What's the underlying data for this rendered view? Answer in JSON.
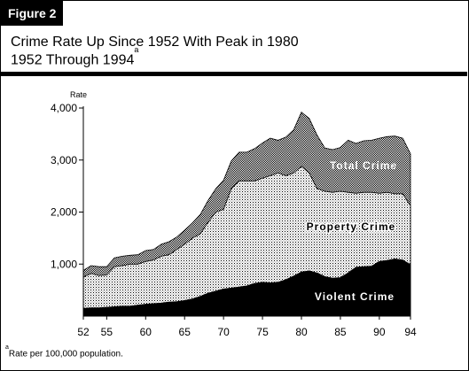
{
  "header": {
    "figure_label": "Figure 2",
    "title_line1": "Crime Rate Up Since 1952 With Peak in 1980",
    "title_line2": "1952 Through 1994",
    "title_footnote_marker": "a"
  },
  "footnote": {
    "marker": "a",
    "text": "Rate per 100,000 population."
  },
  "chart_data": {
    "type": "area",
    "stacked": true,
    "ylabel": "Rate",
    "xlabel": "",
    "ylim": [
      0,
      4000
    ],
    "xlim": [
      1952,
      1994
    ],
    "yticks": [
      1000,
      2000,
      3000,
      4000
    ],
    "ytick_labels": [
      "1,000",
      "2,000",
      "3,000",
      "4,000"
    ],
    "xticks": [
      1952,
      1955,
      1960,
      1965,
      1970,
      1975,
      1980,
      1985,
      1990,
      1994
    ],
    "xtick_labels": [
      "52",
      "55",
      "60",
      "65",
      "70",
      "75",
      "80",
      "85",
      "90",
      "94"
    ],
    "grid": false,
    "x": [
      1952,
      1953,
      1954,
      1955,
      1956,
      1957,
      1958,
      1959,
      1960,
      1961,
      1962,
      1963,
      1964,
      1965,
      1966,
      1967,
      1968,
      1969,
      1970,
      1971,
      1972,
      1973,
      1974,
      1975,
      1976,
      1977,
      1978,
      1979,
      1980,
      1981,
      1982,
      1983,
      1984,
      1985,
      1986,
      1987,
      1988,
      1989,
      1990,
      1991,
      1992,
      1993,
      1994
    ],
    "series": [
      {
        "name": "Violent Crime",
        "color": "#000000",
        "values": [
          150,
          160,
          160,
          170,
          180,
          190,
          190,
          210,
          230,
          240,
          250,
          270,
          280,
          300,
          330,
          380,
          440,
          480,
          520,
          540,
          560,
          580,
          630,
          650,
          640,
          650,
          700,
          770,
          850,
          870,
          830,
          760,
          730,
          740,
          830,
          940,
          950,
          960,
          1050,
          1070,
          1100,
          1080,
          990
        ]
      },
      {
        "name": "Property Crime",
        "color": "#cfcfcf",
        "values": [
          750,
          820,
          780,
          790,
          950,
          970,
          1000,
          1000,
          1050,
          1080,
          1150,
          1180,
          1280,
          1380,
          1500,
          1580,
          1800,
          2000,
          2050,
          2450,
          2600,
          2600,
          2600,
          2650,
          2700,
          2750,
          2700,
          2750,
          2880,
          2750,
          2450,
          2400,
          2380,
          2400,
          2380,
          2360,
          2380,
          2380,
          2360,
          2380,
          2350,
          2350,
          2120
        ]
      },
      {
        "name": "Total Crime",
        "color": "#8a8a8a",
        "values": [
          880,
          970,
          950,
          950,
          1120,
          1150,
          1170,
          1180,
          1260,
          1280,
          1380,
          1430,
          1520,
          1650,
          1790,
          1950,
          2220,
          2450,
          2610,
          2980,
          3150,
          3150,
          3220,
          3330,
          3420,
          3380,
          3440,
          3580,
          3920,
          3800,
          3480,
          3230,
          3200,
          3240,
          3380,
          3320,
          3370,
          3380,
          3420,
          3450,
          3460,
          3420,
          3120
        ]
      }
    ],
    "annotations": [
      "Total Crime",
      "Property Crime",
      "Violent Crime"
    ]
  }
}
